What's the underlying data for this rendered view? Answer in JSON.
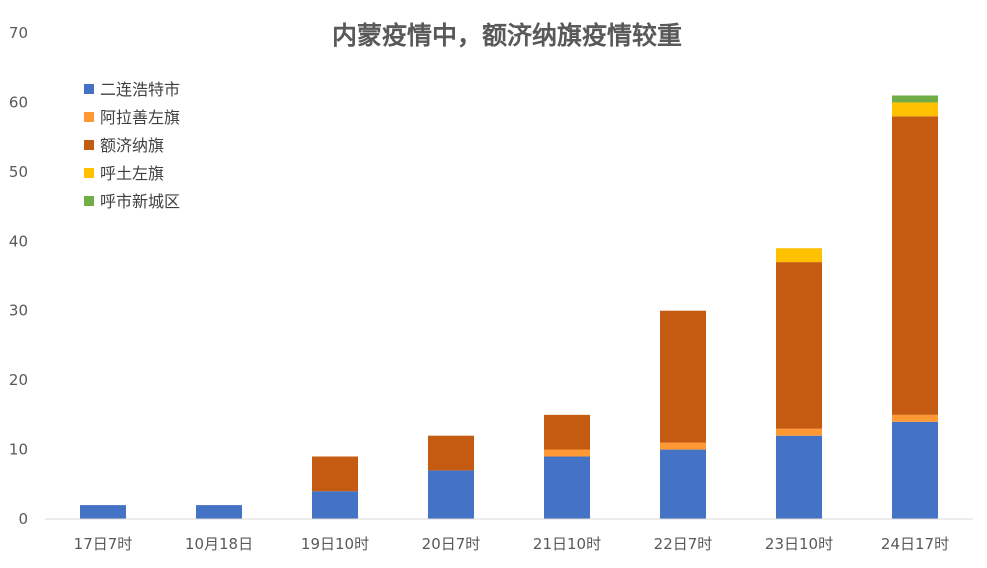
{
  "chart_data": {
    "type": "bar",
    "stacked": true,
    "title": "内蒙疫情中，额济纳旗疫情较重",
    "xlabel": "",
    "ylabel": "",
    "ylim": [
      0,
      70
    ],
    "yticks": [
      0,
      10,
      20,
      30,
      40,
      50,
      60,
      70
    ],
    "grid": false,
    "legend": "top-left",
    "categories": [
      "17日7时",
      "10月18日",
      "19日10时",
      "20日7时",
      "21日10时",
      "22日7时",
      "23日10时",
      "24日17时"
    ],
    "series": [
      {
        "name": "二连浩特市",
        "color": "#4472C4",
        "values": [
          2,
          2,
          4,
          7,
          9,
          10,
          12,
          14
        ]
      },
      {
        "name": "阿拉善左旗",
        "color": "#FF9933",
        "values": [
          0,
          0,
          0,
          0,
          1,
          1,
          1,
          1
        ]
      },
      {
        "name": "额济纳旗",
        "color": "#C55A11",
        "values": [
          0,
          0,
          5,
          5,
          5,
          19,
          24,
          43
        ]
      },
      {
        "name": "呼土左旗",
        "color": "#FFC000",
        "values": [
          0,
          0,
          0,
          0,
          0,
          0,
          2,
          2
        ]
      },
      {
        "name": "呼市新城区",
        "color": "#70AD47",
        "values": [
          0,
          0,
          0,
          0,
          0,
          0,
          0,
          1
        ]
      }
    ]
  }
}
